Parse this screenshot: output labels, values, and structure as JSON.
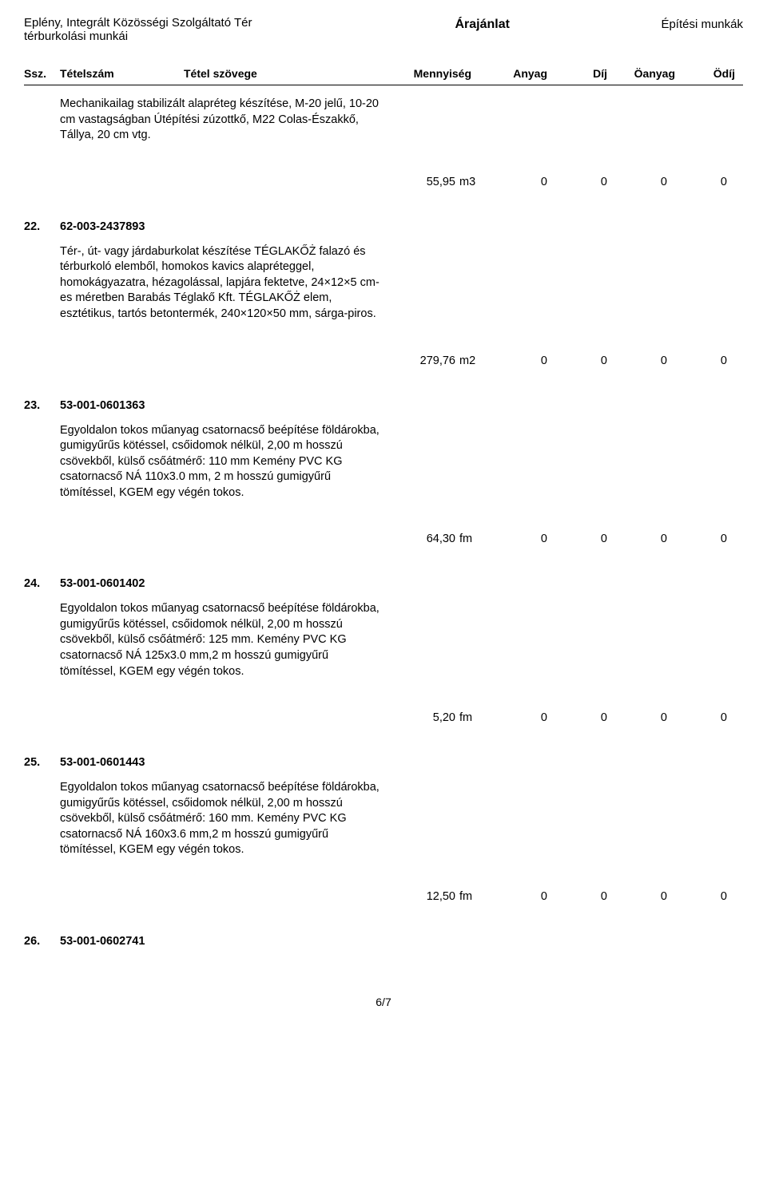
{
  "header": {
    "left": "Eplény, Integrált Közösségi Szolgáltató Tér térburkolási munkái",
    "center": "Árajánlat",
    "right": "Építési munkák"
  },
  "columns": {
    "ssz": "Ssz.",
    "tetelszam": "Tételszám",
    "szoveg": "Tétel szövege",
    "mennyiseg": "Mennyiség",
    "anyag": "Anyag",
    "dij": "Díj",
    "oanyag": "Öanyag",
    "odij": "Ödíj"
  },
  "intro_desc": "Mechanikailag stabilizált alapréteg készítése, M-20 jelű, 10-20 cm vastagságban Útépítési zúzottkő, M22 Colas-Északkő, Tállya, 20 cm vtg.",
  "intro_measure": {
    "qty": "55,95",
    "unit": "m3",
    "anyag": "0",
    "dij": "0",
    "oanyag": "0",
    "odij": "0"
  },
  "items": [
    {
      "num": "22.",
      "code": "62-003-2437893",
      "desc": "Tér-, út- vagy járdaburkolat készítése TÉGLAKŐŻ falazó és térburkoló elemből, homokos kavics alapréteggel, homokágyazatra, hézagolással, lapjára fektetve, 24×12×5 cm-es méretben Barabás Téglakő Kft. TÉGLAKŐŻ elem, esztétikus, tartós betontermék, 240×120×50 mm, sárga-piros.",
      "measure": {
        "qty": "279,76",
        "unit": "m2",
        "anyag": "0",
        "dij": "0",
        "oanyag": "0",
        "odij": "0"
      }
    },
    {
      "num": "23.",
      "code": "53-001-0601363",
      "desc": "Egyoldalon tokos műanyag csatornacső beépítése földárokba, gumigyűrűs kötéssel, csőidomok nélkül, 2,00 m hosszú csövekből, külső csőátmérő: 110 mm Kemény PVC KG csatornacső NÁ 110x3.0 mm, 2 m hosszú gumigyűrű tömítéssel, KGEM egy végén tokos.",
      "measure": {
        "qty": "64,30",
        "unit": "fm",
        "anyag": "0",
        "dij": "0",
        "oanyag": "0",
        "odij": "0"
      }
    },
    {
      "num": "24.",
      "code": "53-001-0601402",
      "desc": "Egyoldalon tokos műanyag csatornacső beépítése földárokba, gumigyűrűs kötéssel, csőidomok nélkül, 2,00 m hosszú csövekből, külső csőátmérő: 125 mm. Kemény PVC KG csatornacső NÁ 125x3.0 mm,2 m hosszú gumigyűrű tömítéssel, KGEM egy végén tokos.",
      "measure": {
        "qty": "5,20",
        "unit": "fm",
        "anyag": "0",
        "dij": "0",
        "oanyag": "0",
        "odij": "0"
      }
    },
    {
      "num": "25.",
      "code": "53-001-0601443",
      "desc": "Egyoldalon tokos műanyag csatornacső beépítése földárokba, gumigyűrűs kötéssel, csőidomok nélkül, 2,00 m hosszú csövekből, külső csőátmérő: 160 mm. Kemény PVC KG csatornacső NÁ 160x3.6 mm,2 m hosszú gumigyűrű tömítéssel, KGEM egy végén tokos.",
      "measure": {
        "qty": "12,50",
        "unit": "fm",
        "anyag": "0",
        "dij": "0",
        "oanyag": "0",
        "odij": "0"
      }
    },
    {
      "num": "26.",
      "code": "53-001-0602741",
      "desc": "",
      "measure": null
    }
  ],
  "footer": "6/7"
}
